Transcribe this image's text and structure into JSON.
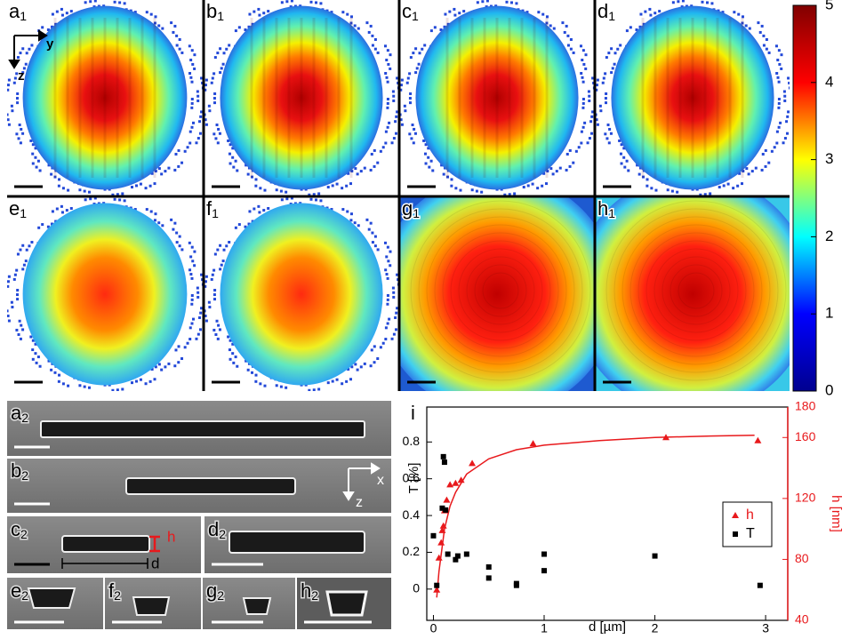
{
  "heatmap_panels": [
    {
      "letter": "a",
      "sub": "1"
    },
    {
      "letter": "b",
      "sub": "1"
    },
    {
      "letter": "c",
      "sub": "1"
    },
    {
      "letter": "d",
      "sub": "1"
    },
    {
      "letter": "e",
      "sub": "1"
    },
    {
      "letter": "f",
      "sub": "1"
    },
    {
      "letter": "g",
      "sub": "1"
    },
    {
      "letter": "h",
      "sub": "1"
    }
  ],
  "axis_labels": {
    "y": "y",
    "z": "z"
  },
  "colorbar": {
    "lim": [
      0,
      5
    ],
    "ticks": [
      0,
      1,
      2,
      3,
      4,
      5
    ],
    "colors": [
      "#00008f",
      "#0000ff",
      "#00ffff",
      "#ffff00",
      "#ff0000",
      "#800000"
    ]
  },
  "sem_panels": [
    {
      "letter": "a",
      "sub": "2"
    },
    {
      "letter": "b",
      "sub": "2"
    },
    {
      "letter": "c",
      "sub": "2"
    },
    {
      "letter": "d",
      "sub": "2"
    },
    {
      "letter": "e",
      "sub": "2"
    },
    {
      "letter": "f",
      "sub": "2"
    },
    {
      "letter": "g",
      "sub": "2"
    },
    {
      "letter": "h",
      "sub": "2"
    }
  ],
  "sem_annotations": {
    "x": "x",
    "z": "z",
    "h": "h",
    "d": "d"
  },
  "chart_data": {
    "type": "scatter",
    "label": "i",
    "xlabel": "d [µm]",
    "ylabel": "T [%]",
    "y2label": "h [nm]",
    "xlim": [
      -0.06,
      3.2
    ],
    "xticks": [
      0,
      1,
      2,
      3
    ],
    "ylim": [
      -0.17,
      0.99
    ],
    "yticks": [
      0,
      0.2,
      0.4,
      0.6,
      0.8
    ],
    "y2lim": [
      40,
      180
    ],
    "y2ticks": [
      40,
      80,
      120,
      160,
      180
    ],
    "legend": "center right",
    "series": [
      {
        "name": "h",
        "color": "#e8191c",
        "marker": "triangle",
        "axis": "y2",
        "x": [
          0.03,
          0.05,
          0.07,
          0.08,
          0.09,
          0.1,
          0.12,
          0.15,
          0.2,
          0.25,
          0.35,
          0.9,
          2.1,
          2.93
        ],
        "values": [
          60,
          81,
          91,
          99,
          102,
          112,
          119,
          129,
          130,
          132,
          143,
          156,
          160,
          158
        ]
      },
      {
        "name": "T",
        "color": "#000000",
        "marker": "square",
        "x": [
          0,
          0.03,
          0.08,
          0.09,
          0.1,
          0.11,
          0.13,
          0.2,
          0.22,
          0.3,
          0.5,
          0.5,
          0.75,
          0.75,
          1.0,
          1.0,
          2.0,
          2.95
        ],
        "values": [
          0.29,
          0.02,
          0.44,
          0.72,
          0.69,
          0.43,
          0.19,
          0.16,
          0.18,
          0.19,
          0.12,
          0.06,
          0.03,
          0.02,
          0.19,
          0.1,
          0.18,
          0.02
        ]
      }
    ],
    "fit": {
      "color": "#e8191c",
      "axis": "y2",
      "x": [
        0.03,
        0.05,
        0.1,
        0.15,
        0.2,
        0.3,
        0.5,
        0.75,
        1,
        1.5,
        2,
        2.5,
        2.9
      ],
      "values": [
        55,
        72,
        100,
        115,
        124,
        136,
        146,
        152,
        155,
        158,
        160,
        161,
        161.5
      ]
    }
  }
}
